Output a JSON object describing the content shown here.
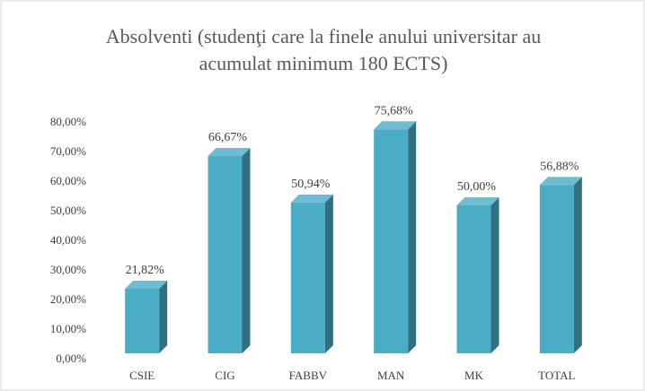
{
  "chart_data": {
    "type": "bar3d",
    "title": "Absolventi (studenţi care la finele anului universitar au acumulat minimum 180 ECTS)",
    "categories": [
      "CSIE",
      "CIG",
      "FABBV",
      "MAN",
      "MK",
      "TOTAL"
    ],
    "values": [
      21.82,
      66.67,
      50.94,
      75.68,
      50.0,
      56.88
    ],
    "value_labels": [
      "21,82%",
      "66,67%",
      "50,94%",
      "75,68%",
      "50,00%",
      "56,88%"
    ],
    "color": "#4bacc6",
    "ylim": [
      0,
      80
    ],
    "yticks": [
      {
        "value": 0,
        "label": "0,00%"
      },
      {
        "value": 10,
        "label": "10,00%"
      },
      {
        "value": 20,
        "label": "20,00%"
      },
      {
        "value": 30,
        "label": "30,00%"
      },
      {
        "value": 40,
        "label": "40,00%"
      },
      {
        "value": 50,
        "label": "50,00%"
      },
      {
        "value": 60,
        "label": "60,00%"
      },
      {
        "value": 70,
        "label": "70,00%"
      },
      {
        "value": 80,
        "label": "80,00%"
      }
    ],
    "grid": false
  }
}
